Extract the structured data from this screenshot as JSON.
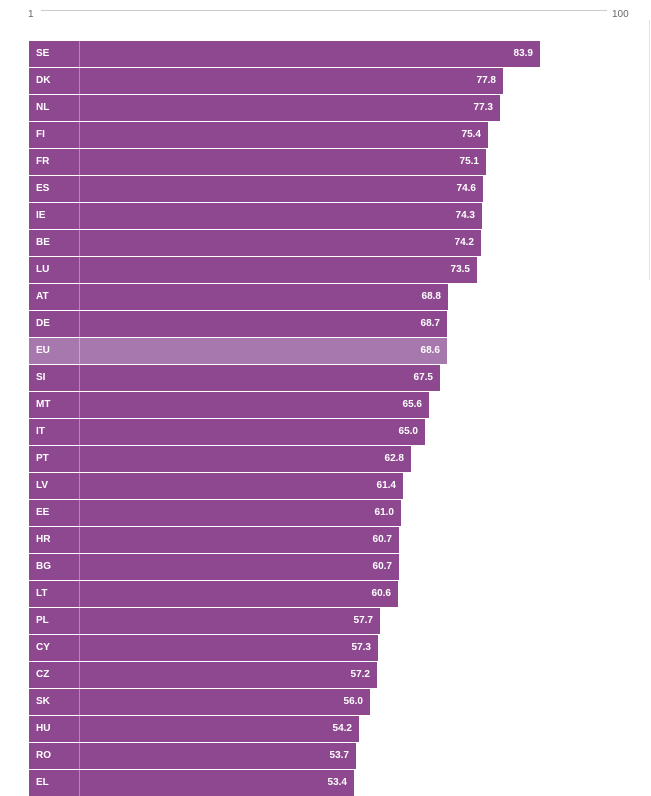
{
  "chart_data": {
    "type": "bar",
    "orientation": "horizontal",
    "scale_labels": {
      "min": "1",
      "max": "100"
    },
    "xlim": [
      1,
      100
    ],
    "bar_color": "#8e4890",
    "highlight_color": "#a778ad",
    "highlight_category": "EU",
    "categories": [
      "SE",
      "DK",
      "NL",
      "FI",
      "FR",
      "ES",
      "IE",
      "BE",
      "LU",
      "AT",
      "DE",
      "EU",
      "SI",
      "MT",
      "IT",
      "PT",
      "LV",
      "EE",
      "HR",
      "BG",
      "LT",
      "PL",
      "CY",
      "CZ",
      "SK",
      "HU",
      "RO",
      "EL"
    ],
    "values": [
      83.9,
      77.8,
      77.3,
      75.4,
      75.1,
      74.6,
      74.3,
      74.2,
      73.5,
      68.8,
      68.7,
      68.6,
      67.5,
      65.6,
      65.0,
      62.8,
      61.4,
      61.0,
      60.7,
      60.7,
      60.6,
      57.7,
      57.3,
      57.2,
      56.0,
      54.2,
      53.7,
      53.4
    ],
    "value_labels": [
      "83.9",
      "77.8",
      "77.3",
      "75.4",
      "75.1",
      "74.6",
      "74.3",
      "74.2",
      "73.5",
      "68.8",
      "68.7",
      "68.6",
      "67.5",
      "65.6",
      "65.0",
      "62.8",
      "61.4",
      "61.0",
      "60.7",
      "60.7",
      "60.6",
      "57.7",
      "57.3",
      "57.2",
      "56.0",
      "54.2",
      "53.7",
      "53.4"
    ]
  }
}
